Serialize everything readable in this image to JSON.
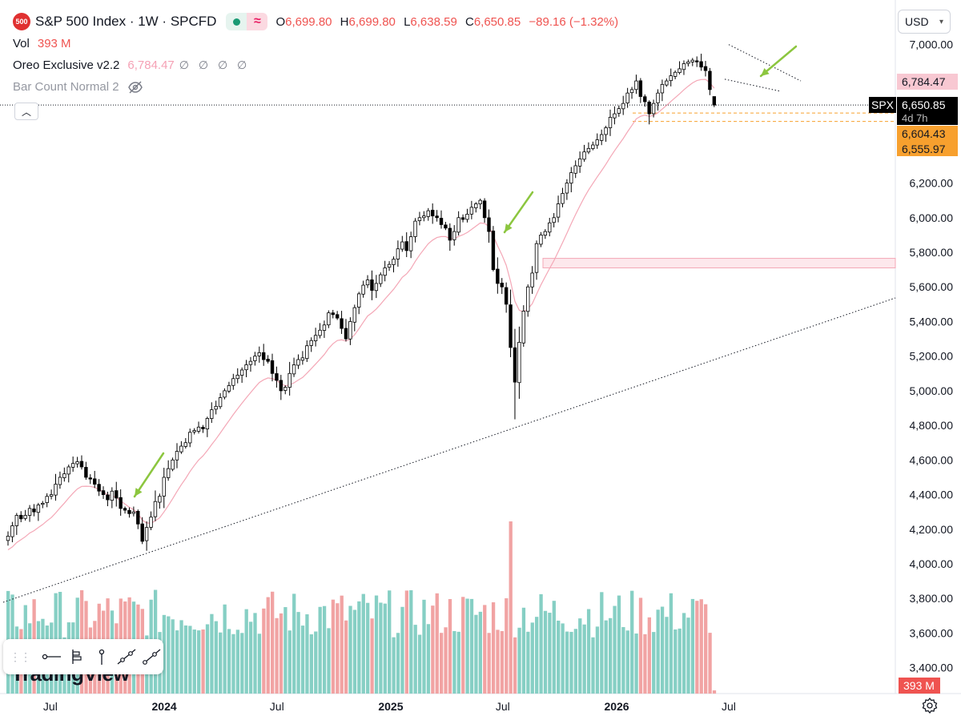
{
  "header": {
    "logo_text": "500",
    "title": "S&P 500 Index · 1W · SPCFD",
    "pill_icon_left": "market-open-dot-icon",
    "pill_icon_right": "waves-icon",
    "ohlc": {
      "o_label": "O",
      "o_value": "6,699.80",
      "h_label": "H",
      "h_value": "6,699.80",
      "l_label": "L",
      "l_value": "6,638.59",
      "c_label": "C",
      "c_value": "6,650.85",
      "change": "−89.16 (−1.32%)"
    }
  },
  "indicators": {
    "vol_label": "Vol",
    "vol_value": "393 M",
    "oreo_label": "Oreo Exclusive v2.2",
    "oreo_value": "6,784.47",
    "oreo_dots": "∅ ∅ ∅ ∅",
    "barcount_label": "Bar Count Normal 2",
    "barcount_icon": "eye-off-icon"
  },
  "collapse_icon": "chevron-up-icon",
  "currency": {
    "label": "USD",
    "icon": "chevron-down-icon"
  },
  "price_tags": {
    "ema_value": "6,784.47",
    "symbol": "SPX",
    "last_price": "6,650.85",
    "countdown": "4d 7h",
    "orange_1": "6,604.43",
    "orange_2": "6,555.97",
    "volume_tag": "393 M"
  },
  "colors": {
    "up": "#ffffff",
    "down": "#000000",
    "vol_up": "#86cfc4",
    "vol_down": "#f1a3a3",
    "ema": "#f4a7b6",
    "orange": "#f7a02e",
    "arrow": "#8cc63f"
  },
  "watermark": "TradingView",
  "toolbar_icons": [
    "grip-icon",
    "horizontal-line-icon",
    "bar-pattern-icon",
    "vertical-line-icon",
    "trend-line-icon",
    "ray-icon"
  ],
  "settings_icon": "gear-icon",
  "chart_data": {
    "type": "candlestick",
    "interval": "1W",
    "y_ticks": [
      3400,
      3600,
      3800,
      4000,
      4200,
      4400,
      4600,
      4800,
      5000,
      5200,
      5400,
      5600,
      5800,
      6000,
      6200,
      7000
    ],
    "y_tick_labels": [
      "3,400.00",
      "3,600.00",
      "3,800.00",
      "4,000.00",
      "4,200.00",
      "4,400.00",
      "4,600.00",
      "4,800.00",
      "5,000.00",
      "5,200.00",
      "5,400.00",
      "5,600.00",
      "5,800.00",
      "6,000.00",
      "6,200.00",
      "7,000.00"
    ],
    "x_labels": [
      "Jul",
      "2024",
      "Jul",
      "2025",
      "Jul",
      "2026",
      "Jul"
    ],
    "x_label_dates": [
      "2023-07-01",
      "2024-01-01",
      "2024-07-01",
      "2025-01-01",
      "2025-07-01",
      "2026-01-01",
      "2026-07-01"
    ],
    "first_bar_date": "2023-04-21",
    "closes": [
      4160,
      4220,
      4280,
      4260,
      4280,
      4320,
      4300,
      4340,
      4350,
      4390,
      4400,
      4460,
      4500,
      4520,
      4560,
      4580,
      4590,
      4560,
      4500,
      4490,
      4460,
      4420,
      4400,
      4370,
      4420,
      4380,
      4320,
      4310,
      4290,
      4300,
      4230,
      4130,
      4210,
      4270,
      4360,
      4390,
      4500,
      4550,
      4600,
      4650,
      4680,
      4700,
      4760,
      4770,
      4790,
      4780,
      4840,
      4890,
      4910,
      4960,
      5000,
      5030,
      5070,
      5090,
      5120,
      5150,
      5170,
      5200,
      5220,
      5180,
      5170,
      5100,
      5060,
      5000,
      5020,
      5100,
      5150,
      5180,
      5190,
      5260,
      5290,
      5320,
      5350,
      5380,
      5450,
      5440,
      5420,
      5360,
      5300,
      5400,
      5480,
      5560,
      5610,
      5640,
      5580,
      5620,
      5670,
      5710,
      5730,
      5760,
      5820,
      5860,
      5810,
      5890,
      5980,
      6000,
      6010,
      6040,
      6010,
      6000,
      5960,
      5940,
      5870,
      5920,
      6000,
      5990,
      6020,
      6060,
      6080,
      6100,
      6000,
      5920,
      5700,
      5620,
      5600,
      5500,
      5250,
      5050,
      5280,
      5460,
      5600,
      5680,
      5850,
      5900,
      5920,
      5970,
      6000,
      6080,
      6140,
      6200,
      6260,
      6300,
      6340,
      6380,
      6400,
      6420,
      6450,
      6480,
      6520,
      6580,
      6600,
      6630,
      6660,
      6720,
      6740,
      6790,
      6700,
      6670,
      6600,
      6660,
      6720,
      6770,
      6790,
      6820,
      6840,
      6860,
      6890,
      6900,
      6910,
      6900,
      6870,
      6850,
      6740,
      6650.85
    ],
    "ema_last": 6784.47,
    "zone_low": 5710,
    "zone_high": 5765,
    "orange_levels": [
      6604.43,
      6555.97
    ],
    "last_volume": "393 M"
  }
}
